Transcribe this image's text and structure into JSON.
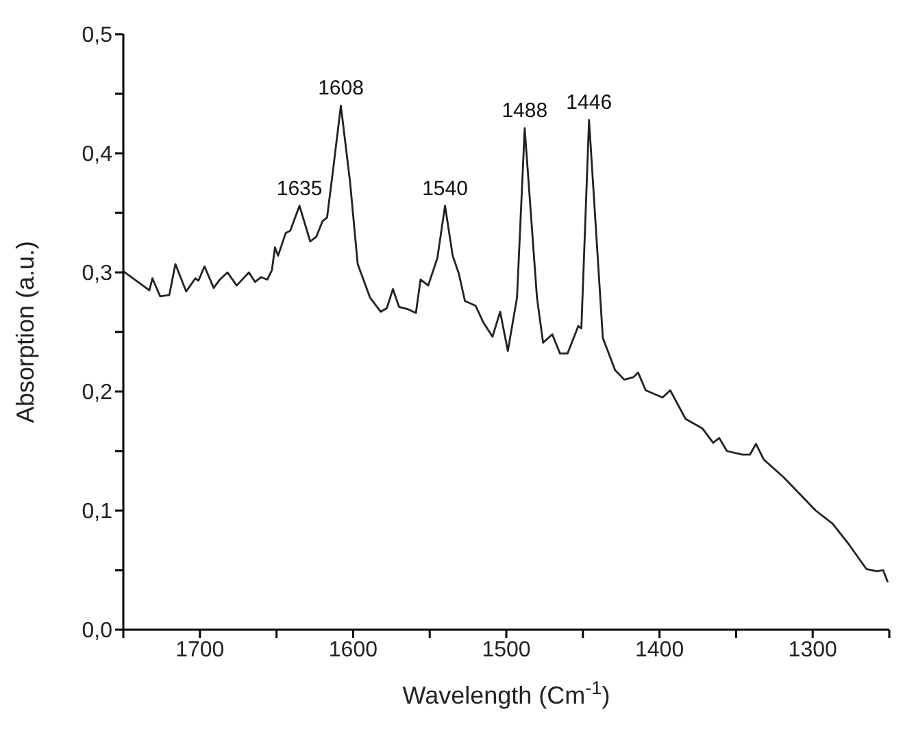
{
  "chart_data": {
    "type": "line",
    "xlabel": "Wavelength (Cm$^{-1}$)",
    "ylabel": "Absorption (a.u.)",
    "x": [
      1750,
      1733,
      1731,
      1726,
      1720,
      1716,
      1709,
      1703,
      1701,
      1697,
      1691,
      1687,
      1682,
      1676,
      1668,
      1664,
      1660,
      1656,
      1653,
      1651,
      1649,
      1644,
      1641,
      1635,
      1628,
      1624,
      1620,
      1617,
      1613,
      1608,
      1602,
      1597,
      1589,
      1582,
      1578,
      1574,
      1570,
      1564,
      1559,
      1556,
      1551,
      1545,
      1540,
      1535,
      1531,
      1527,
      1520,
      1515,
      1509,
      1504,
      1499,
      1493,
      1488,
      1480,
      1476,
      1470,
      1465,
      1460,
      1453,
      1451,
      1446,
      1437,
      1429,
      1423,
      1417,
      1414,
      1409,
      1398,
      1393,
      1383,
      1372,
      1365,
      1361,
      1356,
      1346,
      1341,
      1337,
      1332,
      1319,
      1298,
      1287,
      1276,
      1265,
      1258,
      1254,
      1251
    ],
    "series": [
      {
        "color": "#222222",
        "values": [
          0.301,
          0.285,
          0.295,
          0.28,
          0.281,
          0.307,
          0.284,
          0.295,
          0.293,
          0.305,
          0.287,
          0.294,
          0.3,
          0.289,
          0.3,
          0.292,
          0.296,
          0.294,
          0.302,
          0.321,
          0.314,
          0.333,
          0.335,
          0.356,
          0.326,
          0.33,
          0.343,
          0.346,
          0.387,
          0.44,
          0.376,
          0.307,
          0.279,
          0.267,
          0.27,
          0.286,
          0.271,
          0.269,
          0.266,
          0.294,
          0.289,
          0.312,
          0.356,
          0.314,
          0.299,
          0.276,
          0.272,
          0.258,
          0.246,
          0.267,
          0.234,
          0.279,
          0.421,
          0.279,
          0.241,
          0.248,
          0.232,
          0.232,
          0.255,
          0.253,
          0.428,
          0.245,
          0.218,
          0.21,
          0.212,
          0.216,
          0.201,
          0.195,
          0.201,
          0.177,
          0.169,
          0.157,
          0.161,
          0.15,
          0.147,
          0.147,
          0.156,
          0.143,
          0.128,
          0.1,
          0.089,
          0.071,
          0.051,
          0.049,
          0.05,
          0.04
        ]
      }
    ],
    "xlim": [
      1750,
      1250
    ],
    "xticks": [
      {
        "value": 1750,
        "label": null
      },
      1700,
      {
        "value": 1650,
        "label": null
      },
      1600,
      {
        "value": 1550,
        "label": null
      },
      1500,
      {
        "value": 1450,
        "label": null
      },
      1400,
      {
        "value": 1350,
        "label": null
      },
      1300,
      {
        "value": 1250,
        "label": null
      }
    ],
    "ylim": [
      0,
      0.5
    ],
    "yticks": [
      {
        "value": 0,
        "label": "0,0"
      },
      {
        "value": 0.05,
        "label": null
      },
      {
        "value": 0.1,
        "label": "0,1"
      },
      {
        "value": 0.15,
        "label": null
      },
      {
        "value": 0.2,
        "label": "0,2"
      },
      {
        "value": 0.25,
        "label": null
      },
      {
        "value": 0.3,
        "label": "0,3"
      },
      {
        "value": 0.35,
        "label": null
      },
      {
        "value": 0.4,
        "label": "0,4"
      },
      {
        "value": 0.45,
        "label": null
      },
      {
        "value": 0.5,
        "label": "0,5"
      }
    ],
    "annotations": [
      {
        "text": "1635",
        "x": 1635,
        "y": 0.356
      },
      {
        "text": "1608",
        "x": 1608,
        "y": 0.44
      },
      {
        "text": "1540",
        "x": 1540,
        "y": 0.356
      },
      {
        "text": "1488",
        "x": 1488,
        "y": 0.421
      },
      {
        "text": "1446",
        "x": 1446,
        "y": 0.428
      }
    ],
    "grid": false,
    "legend": false,
    "marker": "none",
    "line_style": "solid"
  }
}
